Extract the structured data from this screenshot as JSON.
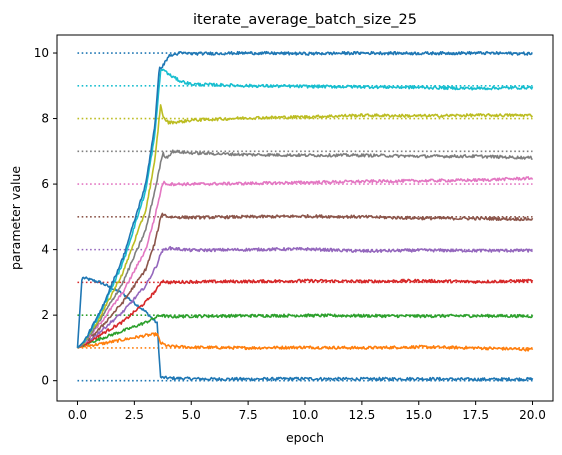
{
  "chart_data": {
    "type": "line",
    "title": "iterate_average_batch_size_25",
    "xlabel": "epoch",
    "ylabel": "parameter value",
    "xlim": [
      -0.9,
      20.9
    ],
    "ylim": [
      -0.62,
      10.55
    ],
    "xticks": [
      0.0,
      2.5,
      5.0,
      7.5,
      10.0,
      12.5,
      15.0,
      17.5,
      20.0
    ],
    "xtick_labels": [
      "0.0",
      "2.5",
      "5.0",
      "7.5",
      "10.0",
      "12.5",
      "15.0",
      "17.5",
      "20.0"
    ],
    "yticks": [
      0,
      2,
      4,
      6,
      8,
      10
    ],
    "ytick_labels": [
      "0",
      "2",
      "4",
      "6",
      "8",
      "10"
    ],
    "grid": false,
    "legend": "none",
    "series": [
      {
        "color": "#1f77b4",
        "target": 0,
        "x": [
          0,
          0.2,
          1,
          2,
          3,
          3.5,
          3.65,
          4,
          5,
          6,
          7.5,
          10,
          12.5,
          15,
          17.5,
          20
        ],
        "y": [
          1.0,
          3.15,
          3.0,
          2.65,
          2.1,
          1.75,
          0.1,
          0.08,
          0.06,
          0.05,
          0.05,
          0.06,
          0.05,
          0.06,
          0.04,
          0.05
        ]
      },
      {
        "color": "#ff7f0e",
        "target": 1,
        "x": [
          0,
          0.3,
          1,
          2,
          3,
          3.5,
          3.65,
          4,
          5,
          7.5,
          10,
          12.5,
          15,
          17.5,
          20
        ],
        "y": [
          1.0,
          1.05,
          1.12,
          1.25,
          1.38,
          1.42,
          1.15,
          1.05,
          1.02,
          1.0,
          1.02,
          1.0,
          1.03,
          1.0,
          0.95
        ]
      },
      {
        "color": "#2ca02c",
        "target": 2,
        "x": [
          0,
          0.3,
          1,
          2,
          3,
          3.5,
          3.65,
          4,
          5,
          7.5,
          10,
          12.5,
          15,
          17.5,
          20
        ],
        "y": [
          1.0,
          1.1,
          1.28,
          1.52,
          1.78,
          1.95,
          2.0,
          1.95,
          1.97,
          1.98,
          1.99,
          1.98,
          1.97,
          1.98,
          1.97
        ]
      },
      {
        "color": "#d62728",
        "target": 3,
        "x": [
          0,
          0.3,
          1,
          2,
          3,
          3.5,
          3.7,
          4,
          5,
          7.5,
          10,
          12.5,
          15,
          17.5,
          20
        ],
        "y": [
          1.0,
          1.1,
          1.4,
          1.8,
          2.4,
          2.8,
          3.05,
          3.0,
          3.02,
          3.03,
          3.05,
          3.03,
          3.05,
          3.02,
          3.05
        ]
      },
      {
        "color": "#9467bd",
        "target": 4,
        "x": [
          0,
          0.3,
          1,
          2,
          3,
          3.5,
          3.7,
          4,
          5,
          7.5,
          10,
          12.5,
          15,
          17.5,
          20
        ],
        "y": [
          1.0,
          1.12,
          1.5,
          2.1,
          2.9,
          3.55,
          3.95,
          4.05,
          3.98,
          4.0,
          4.02,
          3.95,
          3.98,
          3.97,
          3.97
        ]
      },
      {
        "color": "#8c564b",
        "target": 5,
        "x": [
          0,
          0.3,
          1,
          2,
          3,
          3.4,
          3.7,
          4,
          5,
          7.5,
          10,
          12.5,
          15,
          17.5,
          20
        ],
        "y": [
          1.0,
          1.13,
          1.6,
          2.4,
          3.4,
          4.2,
          5.1,
          5.0,
          4.98,
          5.0,
          5.02,
          5.0,
          4.96,
          4.95,
          4.93
        ]
      },
      {
        "color": "#e377c2",
        "target": 6,
        "x": [
          0,
          0.3,
          1,
          2,
          3,
          3.4,
          3.75,
          4,
          5,
          7.5,
          10,
          12.5,
          15,
          17.5,
          20
        ],
        "y": [
          1.0,
          1.15,
          1.75,
          2.7,
          4.0,
          5.0,
          6.05,
          6.0,
          6.0,
          6.02,
          6.05,
          6.08,
          6.1,
          6.12,
          6.18
        ]
      },
      {
        "color": "#7f7f7f",
        "target": 7,
        "x": [
          0,
          0.3,
          1,
          2,
          3,
          3.4,
          3.75,
          3.9,
          4.2,
          5,
          7.5,
          10,
          12.5,
          15,
          17.5,
          20
        ],
        "y": [
          1.0,
          1.15,
          1.85,
          3.0,
          4.6,
          5.8,
          6.95,
          6.8,
          7.0,
          6.95,
          6.9,
          6.88,
          6.88,
          6.85,
          6.85,
          6.8
        ]
      },
      {
        "color": "#bcbd22",
        "target": 8,
        "x": [
          0,
          0.3,
          1,
          2,
          3,
          3.4,
          3.65,
          3.8,
          4.0,
          4.5,
          5,
          7.5,
          10,
          12.5,
          15,
          17.5,
          20
        ],
        "y": [
          1.0,
          1.18,
          1.95,
          3.3,
          5.2,
          6.7,
          8.4,
          8.0,
          7.88,
          7.9,
          7.95,
          8.02,
          8.05,
          8.1,
          8.08,
          8.1,
          8.1
        ]
      },
      {
        "color": "#17becf",
        "target": 9,
        "x": [
          0,
          0.3,
          1,
          2,
          3,
          3.4,
          3.65,
          3.8,
          4.0,
          4.5,
          5,
          7.5,
          10,
          12.5,
          15,
          17.5,
          20
        ],
        "y": [
          1.0,
          1.2,
          2.05,
          3.6,
          5.8,
          7.5,
          9.45,
          9.5,
          9.35,
          9.15,
          9.05,
          9.0,
          8.98,
          8.97,
          8.95,
          8.92,
          8.95
        ]
      },
      {
        "color": "#1f77b4",
        "target": 10,
        "x": [
          0,
          0.3,
          1,
          2,
          3,
          3.4,
          3.6,
          3.75,
          4.0,
          4.5,
          5,
          7.5,
          10,
          12.5,
          15,
          17.5,
          20
        ],
        "y": [
          1.0,
          1.2,
          2.1,
          3.75,
          6.0,
          7.8,
          9.55,
          9.6,
          9.9,
          10.0,
          9.98,
          10.0,
          9.98,
          10.0,
          9.99,
          10.0,
          9.98
        ]
      }
    ],
    "reference_lines": {
      "style": "dotted",
      "x_range": [
        0,
        20
      ],
      "values": [
        0,
        1,
        2,
        3,
        4,
        5,
        6,
        7,
        8,
        9,
        10
      ]
    }
  }
}
